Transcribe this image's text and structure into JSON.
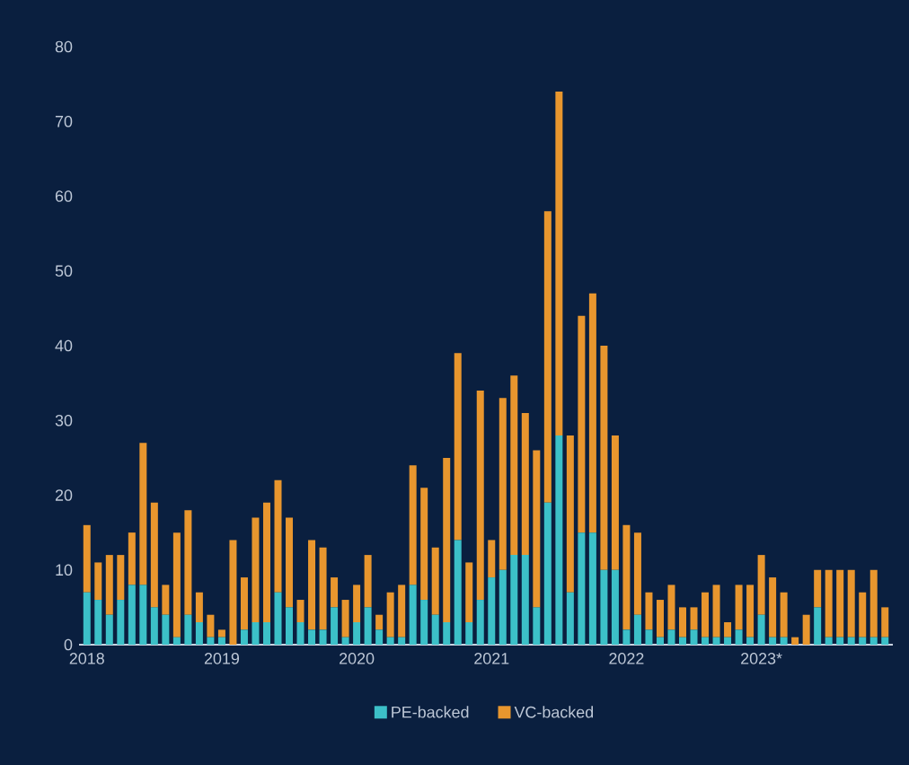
{
  "chart_data": {
    "type": "bar",
    "stacked": true,
    "legend": "bottom",
    "categories": [
      "2018",
      null,
      null,
      null,
      null,
      null,
      null,
      null,
      null,
      null,
      null,
      null,
      "2019",
      null,
      null,
      null,
      null,
      null,
      null,
      null,
      null,
      null,
      null,
      null,
      "2020",
      null,
      null,
      null,
      null,
      null,
      null,
      null,
      null,
      null,
      null,
      null,
      "2021",
      null,
      null,
      null,
      null,
      null,
      null,
      null,
      null,
      null,
      null,
      null,
      "2022",
      null,
      null,
      null,
      null,
      null,
      null,
      null,
      null,
      null,
      null,
      null,
      "2023*",
      null,
      null,
      null,
      null,
      null,
      null,
      null,
      null,
      null,
      null,
      null
    ],
    "series": [
      {
        "name": "PE-backed",
        "color": "#3cc0c8",
        "values": [
          7,
          6,
          4,
          6,
          8,
          8,
          5,
          4,
          1,
          4,
          3,
          1,
          1,
          0,
          2,
          3,
          3,
          7,
          5,
          3,
          2,
          2,
          5,
          1,
          3,
          5,
          2,
          1,
          1,
          8,
          6,
          4,
          3,
          14,
          3,
          6,
          9,
          10,
          12,
          12,
          5,
          19,
          28,
          7,
          15,
          15,
          10,
          10,
          2,
          4,
          2,
          1,
          2,
          1,
          2,
          1,
          1,
          1,
          2,
          1,
          4,
          1,
          1,
          0,
          0,
          5,
          1,
          1,
          1,
          1,
          1,
          1
        ]
      },
      {
        "name": "VC-backed",
        "color": "#e8962e",
        "values": [
          9,
          5,
          8,
          6,
          7,
          19,
          14,
          4,
          14,
          14,
          4,
          3,
          1,
          14,
          7,
          14,
          16,
          15,
          12,
          3,
          12,
          11,
          4,
          5,
          5,
          7,
          2,
          6,
          7,
          16,
          15,
          9,
          22,
          25,
          8,
          28,
          5,
          23,
          24,
          19,
          21,
          39,
          46,
          21,
          29,
          32,
          30,
          18,
          14,
          11,
          5,
          5,
          6,
          4,
          3,
          6,
          7,
          2,
          6,
          7,
          8,
          8,
          6,
          1,
          4,
          5,
          9,
          9,
          9,
          6,
          9,
          4
        ]
      }
    ],
    "ylim": [
      0,
      80
    ],
    "yticks": [
      0,
      10,
      20,
      30,
      40,
      50,
      60,
      70,
      80
    ]
  }
}
